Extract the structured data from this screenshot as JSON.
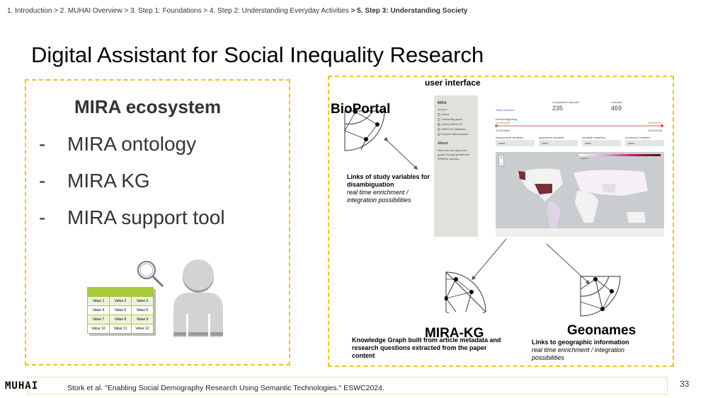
{
  "breadcrumb": {
    "items": [
      "1. Introduction",
      "2. MUHAI Overview",
      "3. Step 1: Foundations",
      "4. Step 2: Understanding Everyday Activities"
    ],
    "current": "5. Step 3: Understanding Society",
    "separator": ">"
  },
  "slide": {
    "title": "Digital Assistant for Social Inequality Research",
    "page_number": "33"
  },
  "left": {
    "heading": "MIRA ecosystem",
    "bullets": [
      "MIRA ontology",
      "MIRA KG",
      "MIRA support tool"
    ],
    "bullet_marker": "-",
    "table_values": [
      [
        "Value 1",
        "Value 2",
        "Value 3"
      ],
      [
        "Value 4",
        "Value 5",
        "Value 6"
      ],
      [
        "Value 7",
        "Value 8",
        "Value 9"
      ],
      [
        "Value 10",
        "Value 11",
        "Value 12"
      ]
    ]
  },
  "right": {
    "ui_label": "user interface",
    "bioportal": {
      "title": "BioPortal",
      "desc_bold": "Links of study variables for disambiguation",
      "desc_italic": "real time enrichment / integration possibilities"
    },
    "mirakg": {
      "title": "MIRA-KG",
      "desc_bold": "Knowledge Graph built from article metadata and research questions extracted from the paper content"
    },
    "geonames": {
      "title": "Geonames",
      "desc_bold": "Links to geographic information",
      "desc_italic": "real time enrichment / integration possibilities"
    }
  },
  "app": {
    "sidebar_title": "MIRA",
    "nav_label": "Navigation",
    "nav_items": [
      "About",
      "Semantify paper",
      "Query MIRA-KG",
      "MIRA-KG statistics",
      "Explore Mechanisms"
    ],
    "nav_selected": "Query MIRA-KG",
    "about_title": "About",
    "about_text": "Here you can query the graph through predefined SPARQL queries.",
    "study_samples_link": "Study samples",
    "pop_label": "# population samples",
    "pop_value": "235",
    "studies_label": "# studies",
    "studies_value": "469",
    "period_label": "Period beginning",
    "range_start": "01/18/1999",
    "range_end": "01/01/2024",
    "min_date": "12/18/1899",
    "max_date": "01/01/2024",
    "filters": [
      {
        "label": "independent variables",
        "value": "select"
      },
      {
        "label": "dependent variables",
        "value": "select"
      },
      {
        "label": "mediator variables",
        "value": "select"
      },
      {
        "label": "moderator variables",
        "value": "select"
      }
    ],
    "zoom_in": "+",
    "zoom_out": "−",
    "legend_label": "Legend",
    "accent": "#e34a4a",
    "choropleth_color": "#7b2d3b"
  },
  "footer": {
    "logo": "MUHAI",
    "citation": "Stork et al. \"Enabling Social Demography Research Using Semantic Technologies.\" ESWC2024."
  }
}
